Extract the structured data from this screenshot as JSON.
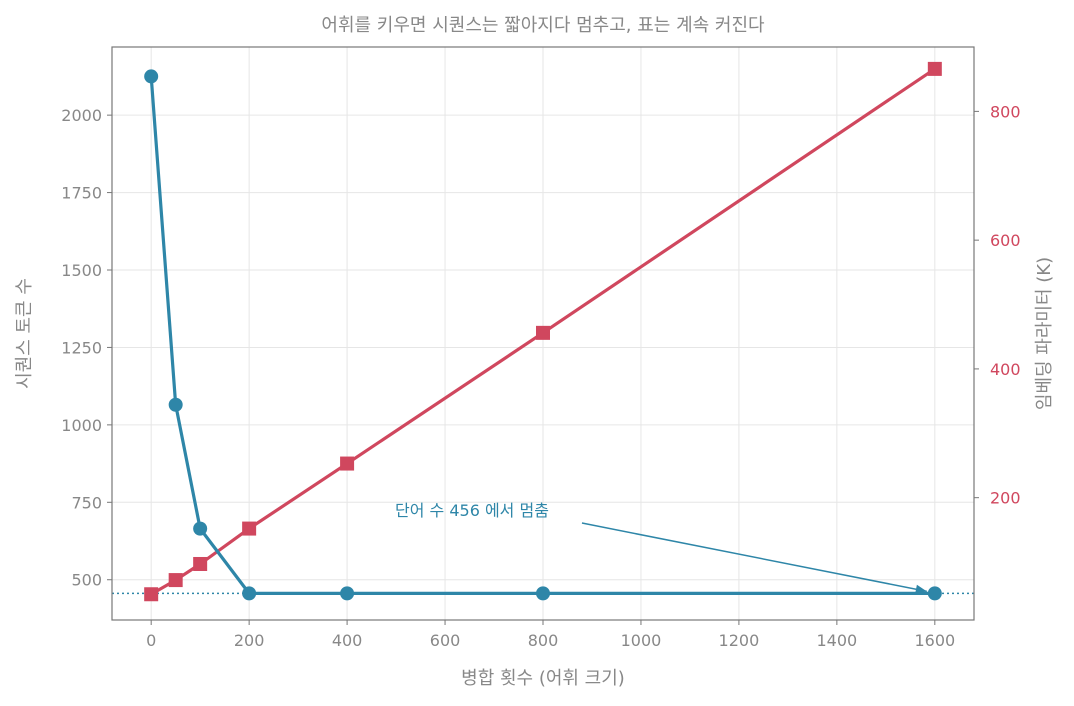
{
  "chart_data": {
    "type": "line",
    "title": "어휘를 키우면 시퀀스는 짧아지다 멈추고, 표는 계속 커진다",
    "xlabel": "병합 횟수 (어휘 크기)",
    "ylabel": "시퀀스 토큰 수",
    "ylabel_right": "임베딩 파라미터 (K)",
    "xlim": [
      -80,
      1680
    ],
    "ylim": [
      370,
      2220
    ],
    "ylim_right": [
      10,
      900
    ],
    "xticks": [
      0,
      200,
      400,
      600,
      800,
      1000,
      1200,
      1400,
      1600
    ],
    "yticks": [
      500,
      750,
      1000,
      1250,
      1500,
      1750,
      2000
    ],
    "yticks_right": [
      200,
      400,
      600,
      800
    ],
    "grid": true,
    "x": [
      0,
      50,
      100,
      200,
      400,
      800,
      1600
    ],
    "series": [
      {
        "axis": "left",
        "color": "#2e86a8",
        "marker": "circle",
        "values": [
          2125,
          1065,
          665,
          456,
          456,
          456,
          456
        ]
      },
      {
        "axis": "right",
        "color": "#d0475e",
        "marker": "square",
        "values": [
          50,
          72,
          97,
          152,
          253,
          456,
          866
        ]
      }
    ],
    "reference_line": {
      "y": 456,
      "axis": "left",
      "style": "dotted",
      "color": "#2e86a8"
    },
    "annotation": {
      "text": "단어 수 456 에서 멈춤",
      "text_x": 900,
      "text_y": 725,
      "point_x": 1600,
      "point_y": 456,
      "color": "#2e86a8"
    }
  }
}
